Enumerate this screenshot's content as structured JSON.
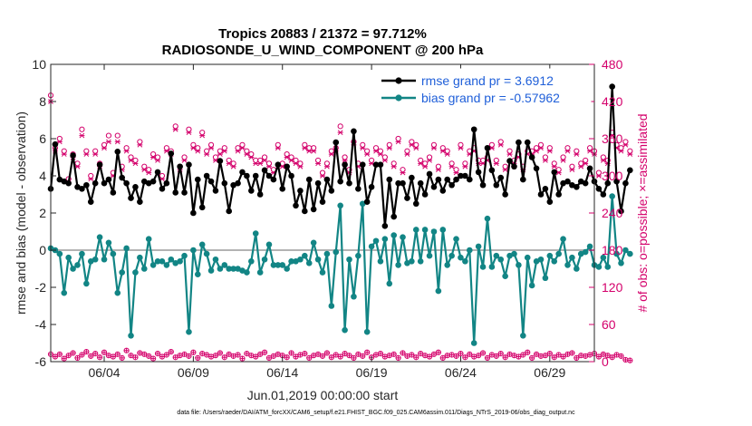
{
  "chart_data": {
    "type": "line",
    "title": "Tropics 20883 / 21372 = 97.712%",
    "subtitle": "RADIOSONDE_U_WIND_COMPONENT @ 200 hPa",
    "xlabel": "Jun.01,2019 00:00:00 start",
    "ylabel": "rmse and bias (model - observation)",
    "y2label": "# of obs: o=possible; ×=assimilated",
    "footnote": "data file: /Users/raeder/DAI/ATM_forcXX/CAM6_setup/f.e21.FHIST_BGC.f09_025.CAM6assim.011/Diags_NTrS_2019-06/obs_diag_output.nc",
    "xlim": [
      0,
      30.5
    ],
    "ylim": [
      -6,
      10
    ],
    "y2lim": [
      0,
      480
    ],
    "xticks": [
      3,
      8,
      13,
      18,
      23,
      28
    ],
    "xtick_labels": [
      "06/04",
      "06/09",
      "06/14",
      "06/19",
      "06/24",
      "06/29"
    ],
    "yticks": [
      "-6",
      "-4",
      "-2",
      "0",
      "2",
      "4",
      "6",
      "8",
      "10"
    ],
    "y2ticks": [
      "0",
      "60",
      "120",
      "180",
      "240",
      "300",
      "360",
      "420",
      "480"
    ],
    "step": 0.25,
    "series": [
      {
        "name": "rmse grand pr = 3.6912",
        "color": "#000000",
        "values": [
          3.3,
          5.7,
          3.8,
          3.7,
          3.6,
          5.1,
          3.4,
          3.3,
          3.5,
          2.6,
          3.6,
          4.6,
          3.6,
          3.8,
          3.1,
          5.3,
          3.9,
          3.6,
          2.8,
          3.4,
          2.6,
          3.7,
          3.6,
          3.7,
          4.2,
          3.3,
          3.6,
          5.2,
          3.1,
          4.5,
          3.1,
          4.6,
          2.0,
          3.8,
          2.3,
          4.0,
          3.7,
          3.2,
          4.8,
          3.6,
          2.1,
          3.5,
          3.6,
          4.2,
          4.0,
          3.2,
          4.0,
          3.0,
          4.3,
          4.0,
          3.8,
          4.6,
          3.3,
          4.5,
          4.0,
          2.4,
          3.2,
          2.1,
          3.8,
          2.2,
          3.6,
          2.6,
          3.8,
          3.2,
          5.8,
          3.7,
          4.6,
          3.6,
          6.4,
          3.3,
          4.6,
          2.6,
          3.4,
          4.6,
          4.6,
          1.3,
          3.8,
          1.8,
          3.6,
          3.6,
          2.8,
          3.9,
          2.5,
          3.6,
          3.0,
          4.1,
          3.4,
          3.8,
          3.2,
          3.8,
          3.5,
          3.8,
          4.0,
          4.0,
          3.8,
          6.5,
          4.2,
          3.5,
          5.5,
          4.3,
          3.5,
          3.9,
          3.0,
          4.8,
          4.5,
          5.8,
          3.8,
          5.8,
          5.0,
          4.4,
          3.0,
          3.3,
          2.6,
          4.2,
          3.0,
          3.6,
          3.7,
          3.5,
          3.4,
          3.7,
          3.6,
          4.4,
          3.7,
          3.3,
          3.0,
          3.6,
          8.8,
          3.7,
          2.1,
          3.6,
          4.3
        ]
      },
      {
        "name": "bias grand pr = -0.57962",
        "color": "#128585",
        "values": [
          0.1,
          0.0,
          -0.2,
          -2.3,
          -0.4,
          -1.0,
          -0.8,
          -0.2,
          -1.8,
          -0.6,
          -0.5,
          0.7,
          -0.5,
          0.4,
          -0.2,
          -2.3,
          -1.2,
          0.1,
          -4.6,
          -1.2,
          -0.4,
          -1.0,
          0.6,
          -0.8,
          -0.6,
          -0.6,
          -0.8,
          -0.5,
          -0.7,
          -0.6,
          -0.3,
          -4.4,
          0.0,
          -1.3,
          0.3,
          -0.2,
          -1.1,
          -0.5,
          -1.0,
          -0.8,
          -1.0,
          -1.0,
          -1.0,
          -1.1,
          -1.2,
          -0.6,
          0.9,
          -1.2,
          -0.5,
          0.3,
          -0.8,
          -0.8,
          -0.8,
          -1.0,
          -0.6,
          -0.6,
          -0.5,
          -0.3,
          -0.7,
          0.4,
          -0.5,
          -1.2,
          -0.2,
          -3.0,
          -0.1,
          2.4,
          -4.3,
          -0.5,
          -2.5,
          -0.3,
          2.5,
          -4.4,
          0.2,
          0.5,
          -0.6,
          0.6,
          -1.8,
          0.8,
          -0.8,
          0.7,
          -0.7,
          -0.6,
          1.1,
          -0.6,
          1.1,
          -0.3,
          1.0,
          -2.2,
          1.1,
          -0.8,
          -0.3,
          0.6,
          -0.4,
          -0.6,
          0.0,
          -5.0,
          0.2,
          -0.9,
          1.7,
          -0.9,
          -0.3,
          -0.5,
          -1.4,
          -0.3,
          -0.2,
          -0.8,
          -4.6,
          -0.4,
          -1.9,
          -0.6,
          -0.5,
          -1.5,
          -0.3,
          -0.6,
          -0.2,
          0.6,
          -0.8,
          -0.4,
          -1.0,
          -0.2,
          -0.1,
          0.2,
          -0.8,
          -0.9,
          -0.4,
          -0.9,
          2.9,
          -0.2,
          -0.7,
          0.0,
          -0.2
        ]
      }
    ],
    "obs_possible": [
      430,
      345,
      360,
      340,
      295,
      335,
      320,
      375,
      340,
      300,
      340,
      320,
      350,
      365,
      305,
      365,
      315,
      345,
      330,
      325,
      355,
      315,
      310,
      335,
      330,
      300,
      345,
      340,
      380,
      315,
      330,
      375,
      350,
      345,
      370,
      340,
      350,
      330,
      340,
      345,
      325,
      320,
      345,
      350,
      340,
      335,
      325,
      325,
      330,
      320,
      310,
      350,
      320,
      335,
      330,
      325,
      320,
      350,
      345,
      345,
      325,
      305,
      320,
      340,
      345,
      380,
      330,
      310,
      355,
      320,
      350,
      340,
      325,
      345,
      340,
      330,
      350,
      320,
      360,
      310,
      340,
      355,
      350,
      325,
      320,
      330,
      350,
      315,
      345,
      340,
      320,
      310,
      350,
      320,
      340,
      345,
      325,
      325,
      330,
      350,
      325,
      355,
      315,
      340,
      325,
      335,
      315,
      340,
      340,
      345,
      350,
      330,
      345,
      320,
      310,
      330,
      345,
      315,
      340,
      320,
      325,
      345,
      340,
      305,
      330,
      325,
      370,
      350,
      345,
      355,
      340
    ],
    "obs_assimilated": [
      420,
      340,
      355,
      335,
      290,
      330,
      315,
      365,
      335,
      295,
      335,
      315,
      345,
      355,
      300,
      355,
      310,
      340,
      325,
      320,
      350,
      310,
      305,
      330,
      325,
      295,
      340,
      335,
      375,
      310,
      325,
      370,
      345,
      340,
      365,
      335,
      345,
      325,
      335,
      340,
      320,
      315,
      340,
      345,
      335,
      330,
      320,
      320,
      325,
      315,
      305,
      345,
      315,
      330,
      325,
      320,
      315,
      345,
      340,
      340,
      320,
      300,
      315,
      335,
      340,
      370,
      325,
      305,
      350,
      315,
      345,
      335,
      320,
      340,
      335,
      325,
      345,
      315,
      355,
      305,
      335,
      350,
      345,
      320,
      315,
      325,
      345,
      310,
      340,
      335,
      315,
      305,
      345,
      315,
      335,
      340,
      320,
      320,
      325,
      345,
      320,
      350,
      310,
      335,
      320,
      330,
      310,
      335,
      335,
      340,
      345,
      325,
      340,
      315,
      305,
      325,
      340,
      310,
      335,
      315,
      320,
      340,
      335,
      300,
      325,
      320,
      365,
      345,
      340,
      350,
      335
    ],
    "obs_bottom": [
      12,
      8,
      12,
      5,
      10,
      14,
      6,
      11,
      16,
      9,
      13,
      7,
      15,
      10,
      8,
      12,
      6,
      18,
      10,
      7,
      14,
      12,
      9,
      5,
      13,
      8,
      11,
      16,
      7,
      10,
      12,
      9,
      15,
      6,
      13,
      11,
      8,
      10,
      14,
      7,
      12,
      9,
      11,
      5,
      13,
      10,
      8,
      12,
      15,
      6,
      9,
      12,
      10,
      7,
      14,
      8,
      11,
      13,
      6,
      10,
      12,
      9,
      14,
      7,
      11,
      8,
      13,
      10,
      6,
      12,
      9,
      15,
      7,
      11,
      13,
      8,
      10,
      12,
      6,
      14,
      9,
      11,
      7,
      13,
      10,
      8,
      12,
      15,
      6,
      10,
      11,
      9,
      13,
      7,
      12,
      8,
      10,
      14,
      6,
      11,
      9,
      13,
      7,
      12,
      10,
      8,
      11,
      15,
      6,
      12,
      9,
      10,
      13,
      7,
      11,
      8,
      12,
      14,
      6,
      10,
      9,
      11,
      13,
      8,
      12,
      10,
      7,
      11,
      9,
      3,
      2
    ],
    "colors": {
      "rmse": "#000000",
      "bias": "#128585",
      "obs": "#d4006b",
      "zero_line": "#b3b3b3"
    }
  }
}
